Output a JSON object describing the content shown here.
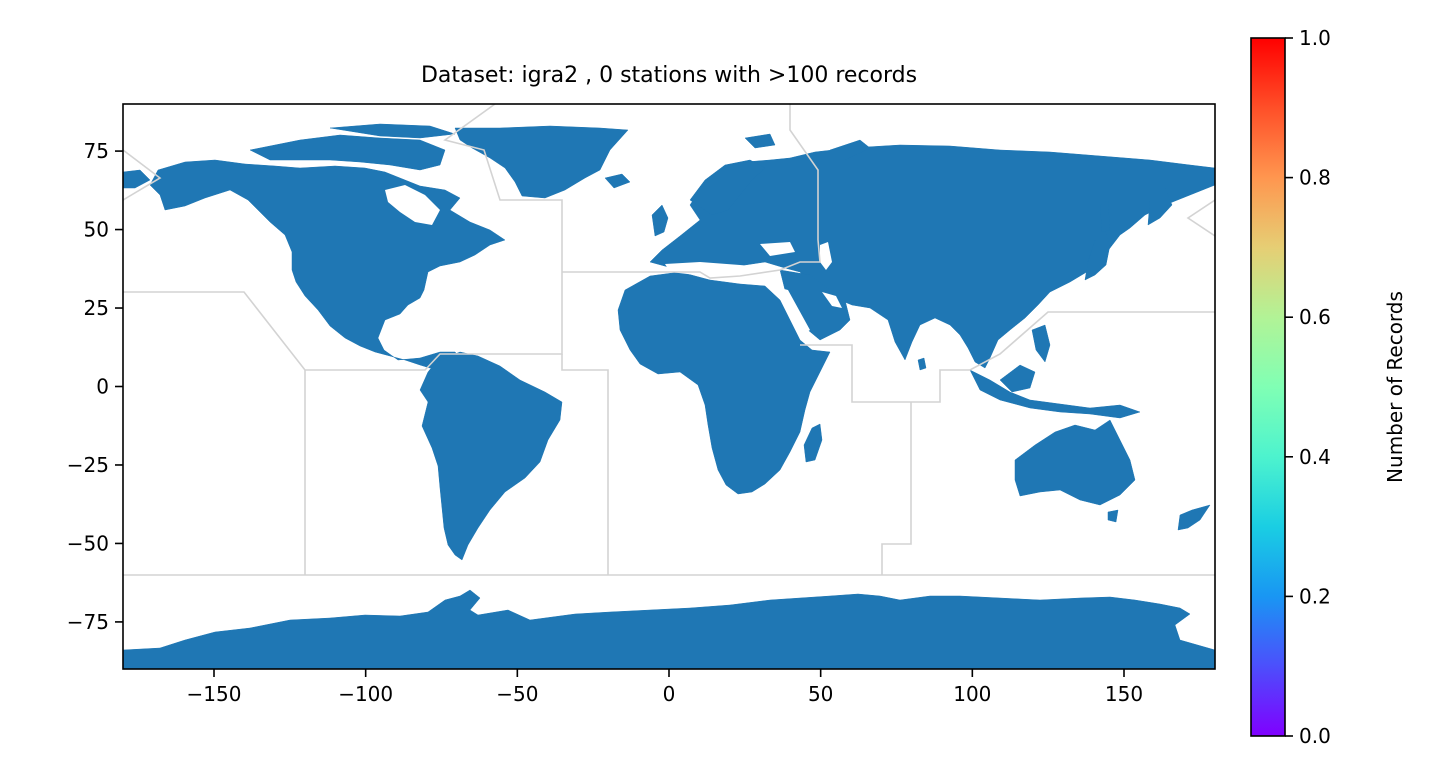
{
  "title": "Dataset: igra2 , 0 stations with >100 records",
  "map": {
    "x_ticks": [
      {
        "value": -150,
        "label": "−150"
      },
      {
        "value": -100,
        "label": "−100"
      },
      {
        "value": -50,
        "label": "−50"
      },
      {
        "value": 0,
        "label": "0"
      },
      {
        "value": 50,
        "label": "50"
      },
      {
        "value": 100,
        "label": "100"
      },
      {
        "value": 150,
        "label": "150"
      }
    ],
    "y_ticks": [
      {
        "value": 75,
        "label": "75"
      },
      {
        "value": 50,
        "label": "50"
      },
      {
        "value": 25,
        "label": "25"
      },
      {
        "value": 0,
        "label": "0"
      },
      {
        "value": -25,
        "label": "−25"
      },
      {
        "value": -50,
        "label": "−50"
      },
      {
        "value": -75,
        "label": "−75"
      }
    ],
    "xlim": [
      -180,
      180
    ],
    "ylim": [
      -90,
      90
    ],
    "land_color": "#1f77b4",
    "boundary_color": "#d3d3d3",
    "stations_plotted": 0
  },
  "colorbar": {
    "label": "Number of Records",
    "colormap": "rainbow",
    "range": [
      0,
      1
    ],
    "ticks": [
      {
        "value": 0.0,
        "label": "0.0"
      },
      {
        "value": 0.2,
        "label": "0.2"
      },
      {
        "value": 0.4,
        "label": "0.4"
      },
      {
        "value": 0.6,
        "label": "0.6"
      },
      {
        "value": 0.8,
        "label": "0.8"
      },
      {
        "value": 1.0,
        "label": "1.0"
      }
    ]
  }
}
